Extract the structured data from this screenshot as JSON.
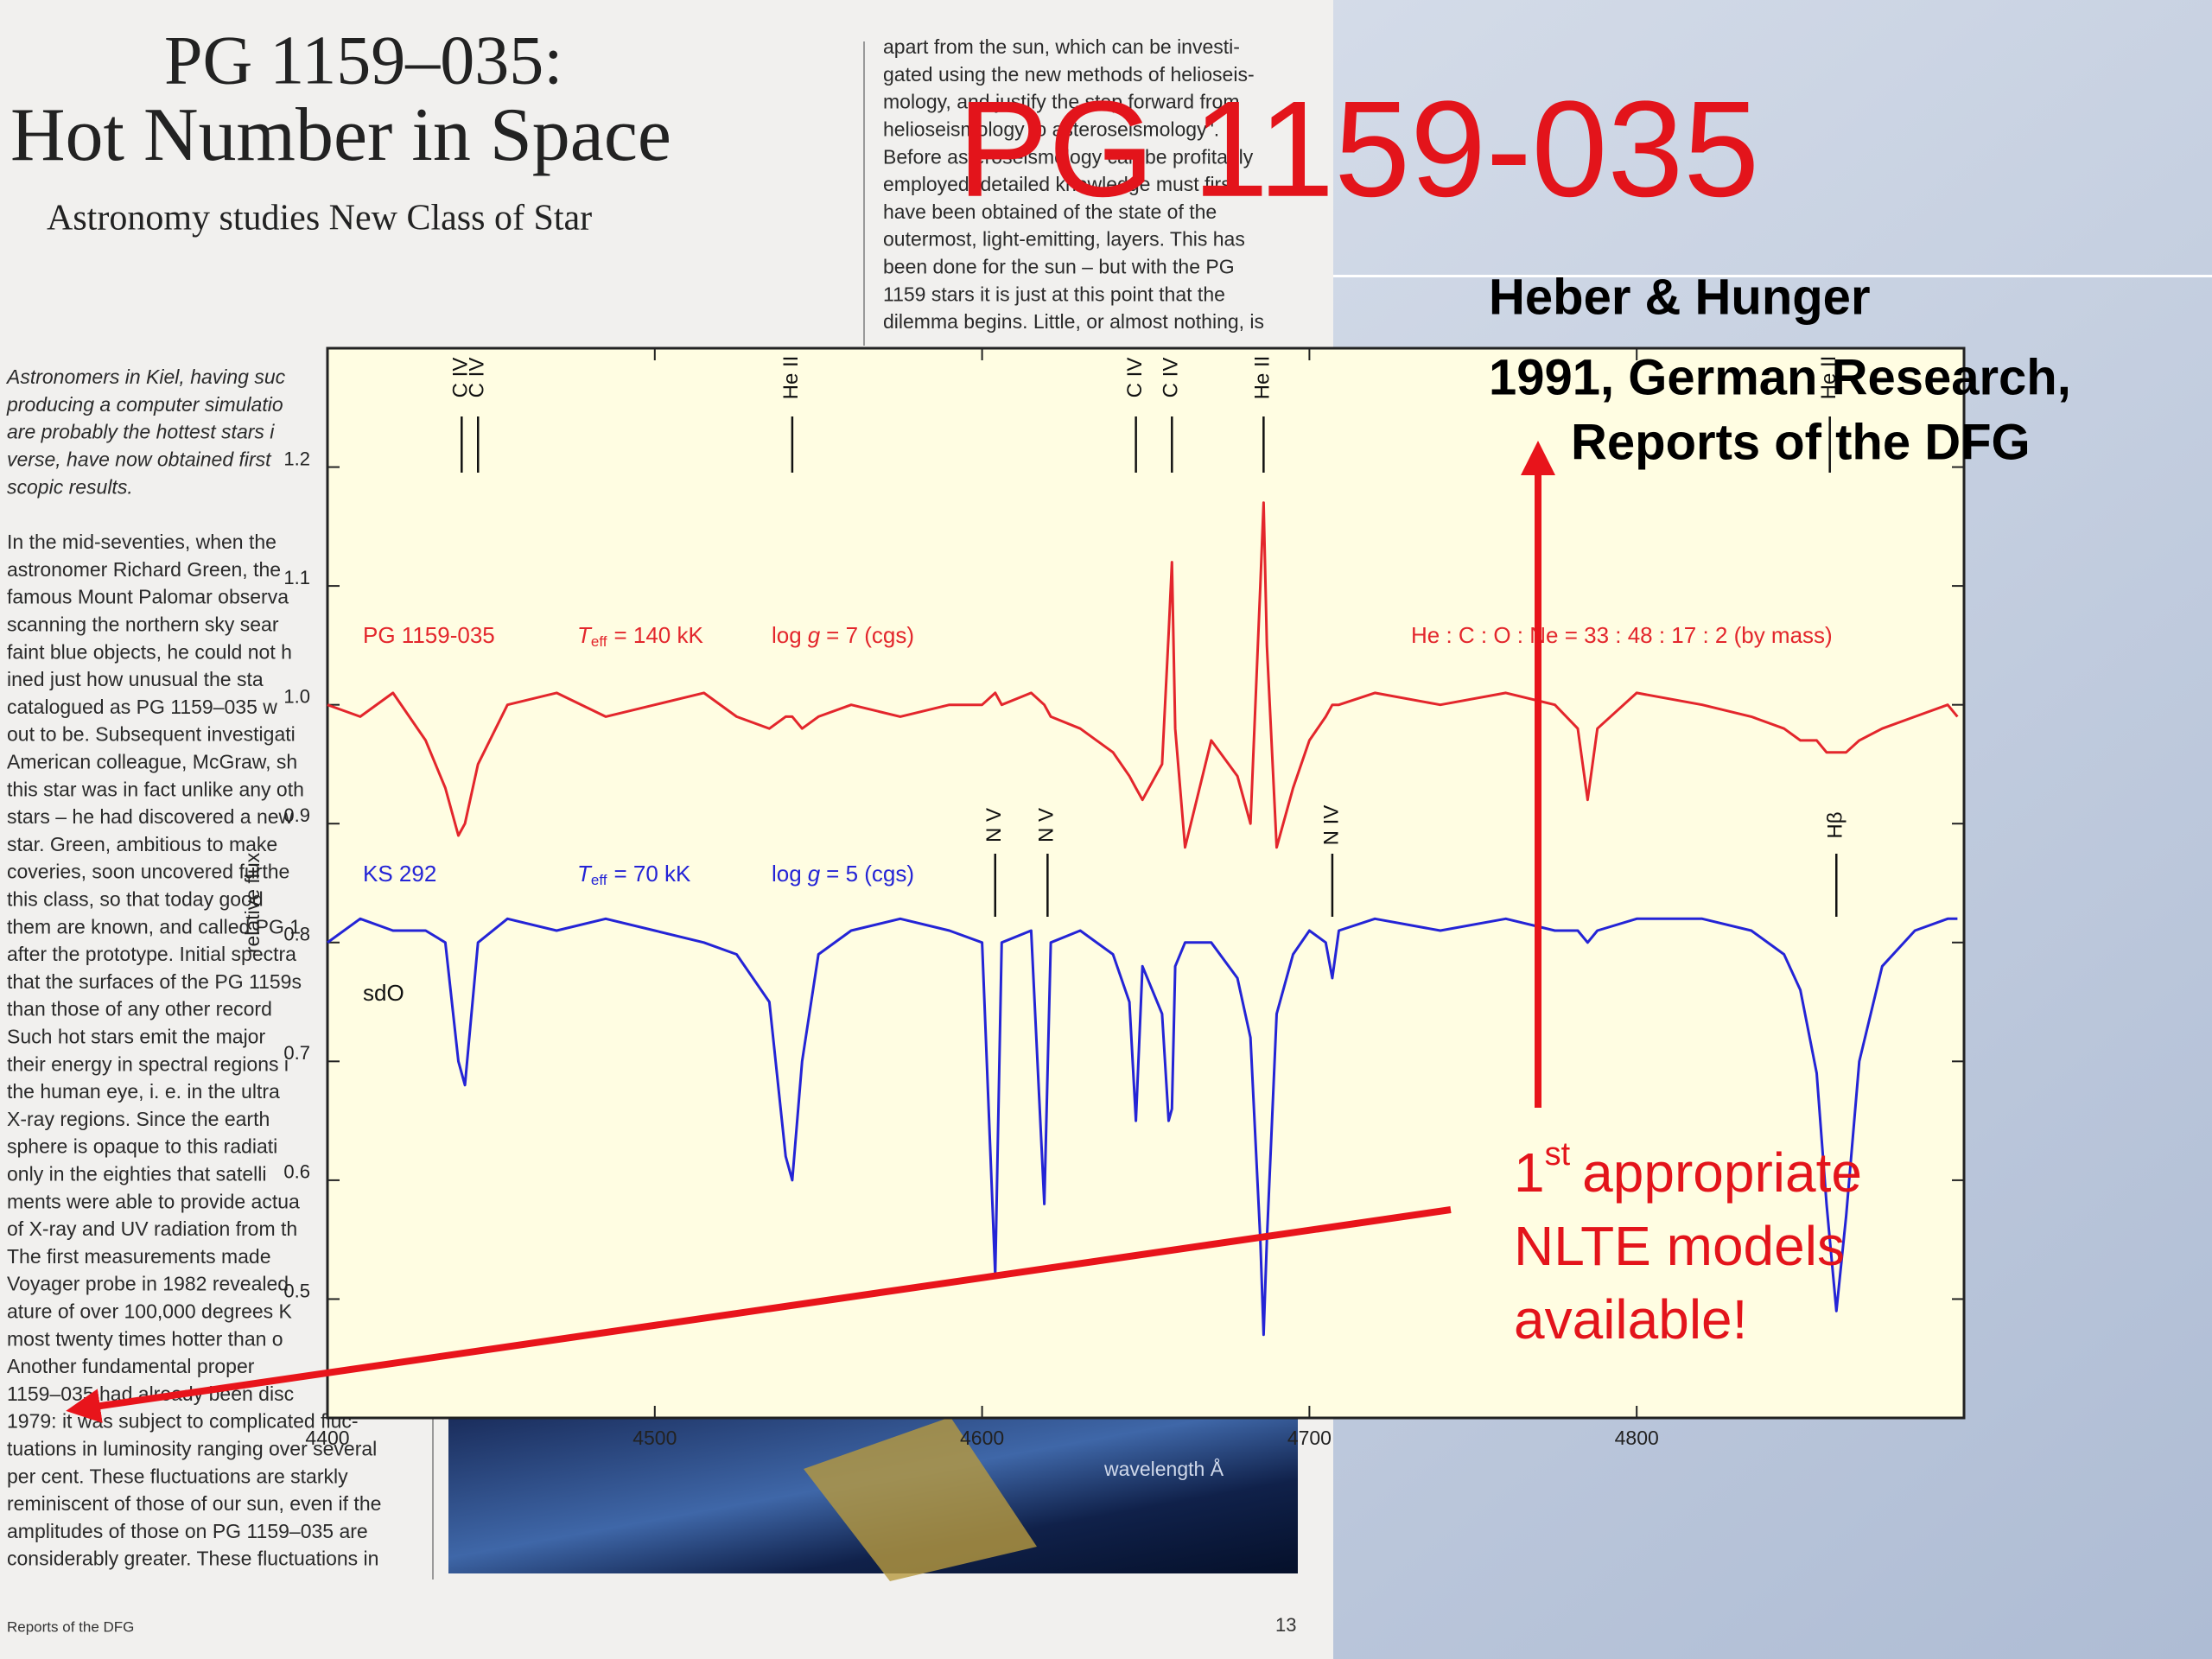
{
  "article": {
    "title_line1": "PG 1159–035:",
    "title_line2": "Hot Number in Space",
    "subtitle": "Astronomy studies New Class of Star",
    "right_column": [
      "apart from the sun, which can be investi-",
      "gated using the new methods of helioseis-",
      "mology, and justify the step forward from",
      "helioseismology to asteroseismology\".",
      "Before asteroseismology can be profitably",
      "employed, detailed knowledge must first",
      "have been obtained of the state of the",
      "outermost, light-emitting, layers. This has",
      "been done for the sun – but with the PG",
      "1159 stars it is just at this point that the",
      "dilemma begins. Little, or almost nothing, is"
    ],
    "lead": [
      "Astronomers in Kiel, having suc",
      "producing a computer simulatio",
      "are probably the hottest stars i",
      "verse, have now obtained first",
      "scopic results."
    ],
    "body": [
      "In the mid-seventies, when the",
      "astronomer Richard Green, the",
      "famous Mount Palomar observa",
      "scanning the northern sky sear",
      "faint blue objects, he could not h",
      "ined just how unusual the sta",
      "catalogued as PG 1159–035 w",
      "out to be. Subsequent investigati",
      "American colleague, McGraw, sh",
      "this star was in fact unlike any oth",
      "stars – he had discovered a new",
      "star. Green, ambitious to make",
      "coveries, soon uncovered furthe",
      "this class, so that today good",
      "them are known, and called PG 1",
      "after the prototype. Initial spectra",
      "that the surfaces of the PG 1159s",
      "than those of any other record",
      "Such hot stars emit the major",
      "their energy in spectral regions i",
      "the human eye, i. e. in the ultra",
      "X-ray regions. Since the earth",
      "sphere is opaque to this radiati",
      "only in the eighties that satelli",
      "ments were able to provide actua",
      "of X-ray and UV radiation from th",
      "The first measurements made",
      "Voyager probe in 1982 revealed",
      "ature of over 100,000 degrees K",
      "most twenty times hotter than o",
      "Another fundamental proper",
      "1159–035 had already been disc",
      "1979: it was subject to complicated fluc-",
      "tuations in luminosity ranging over several",
      "per cent. These fluctuations are starkly",
      "reminiscent of those of our sun, even if the",
      "amplitudes of those on PG 1159–035 are",
      "considerably greater. These fluctuations in"
    ],
    "footer_source": "Reports of the DFG",
    "page_number": "13"
  },
  "slide": {
    "title": "PG 1159-035",
    "reference": [
      "Heber & Hunger",
      "1991, German Research,",
      "Reports of the DFG"
    ],
    "note": {
      "number": "1",
      "superscript": "st",
      "lines": [
        "appropriate",
        "NLTE models",
        "available!"
      ]
    }
  },
  "chart_data": {
    "type": "line",
    "x_label": "wavelength Å",
    "y_label": "relative flux",
    "xlim": [
      4400,
      4900
    ],
    "ylim": [
      0.4,
      1.3
    ],
    "xticks": [
      4400,
      4500,
      4600,
      4700,
      4800
    ],
    "yticks": [
      0.5,
      0.6,
      0.7,
      0.8,
      0.9,
      {
        "value": 1,
        "label": "1.0"
      },
      1.1,
      1.2
    ],
    "x": [
      4400,
      4410,
      4420,
      4430,
      4436,
      4440,
      4442,
      4446,
      4455,
      4470,
      4485,
      4500,
      4515,
      4525,
      4535,
      4540,
      4542,
      4545,
      4550,
      4560,
      4575,
      4590,
      4600,
      4604,
      4606,
      4615,
      4619,
      4621,
      4630,
      4640,
      4645,
      4647,
      4649,
      4655,
      4657,
      4658,
      4659,
      4662,
      4670,
      4678,
      4682,
      4685,
      4686,
      4687,
      4690,
      4695,
      4700,
      4705,
      4707,
      4709,
      4720,
      4740,
      4760,
      4775,
      4782,
      4785,
      4788,
      4800,
      4820,
      4835,
      4845,
      4850,
      4855,
      4858,
      4861,
      4864,
      4868,
      4875,
      4885,
      4895,
      4898
    ],
    "series": [
      {
        "name": "PG 1159-035",
        "color": "#e3262c",
        "teff": [
          "T",
          "eff",
          "= 140 kK"
        ],
        "logg": [
          "log",
          "g",
          "= 7 (cgs)"
        ],
        "abundance": "He : C : O : Ne = 33 : 48 : 17 : 2 (by mass)",
        "values": [
          1.0,
          0.99,
          1.01,
          0.97,
          0.93,
          0.89,
          0.9,
          0.95,
          1.0,
          1.01,
          0.99,
          1.0,
          1.01,
          0.99,
          0.98,
          0.99,
          0.99,
          0.98,
          0.99,
          1.0,
          0.99,
          1.0,
          1.0,
          1.01,
          1.0,
          1.01,
          1.0,
          0.99,
          0.98,
          0.96,
          0.94,
          0.93,
          0.92,
          0.95,
          1.06,
          1.12,
          0.98,
          0.88,
          0.97,
          0.94,
          0.9,
          1.1,
          1.17,
          1.05,
          0.88,
          0.93,
          0.97,
          0.99,
          1.0,
          1.0,
          1.01,
          1.0,
          1.01,
          1.0,
          0.98,
          0.92,
          0.98,
          1.01,
          1.0,
          0.99,
          0.98,
          0.97,
          0.97,
          0.96,
          0.96,
          0.96,
          0.97,
          0.98,
          0.99,
          1.0,
          0.99
        ]
      },
      {
        "name": "KS 292",
        "color": "#2424d6",
        "teff": [
          "T",
          "eff",
          "=  70 kK"
        ],
        "logg": [
          "log",
          "g",
          "= 5 (cgs)"
        ],
        "class": "sdO",
        "values": [
          0.8,
          0.82,
          0.81,
          0.81,
          0.8,
          0.7,
          0.68,
          0.8,
          0.82,
          0.81,
          0.82,
          0.81,
          0.8,
          0.79,
          0.75,
          0.62,
          0.6,
          0.7,
          0.79,
          0.81,
          0.82,
          0.81,
          0.8,
          0.52,
          0.8,
          0.81,
          0.58,
          0.8,
          0.81,
          0.79,
          0.75,
          0.65,
          0.78,
          0.74,
          0.65,
          0.66,
          0.78,
          0.8,
          0.8,
          0.77,
          0.72,
          0.55,
          0.47,
          0.55,
          0.74,
          0.79,
          0.81,
          0.8,
          0.77,
          0.81,
          0.82,
          0.81,
          0.82,
          0.81,
          0.81,
          0.8,
          0.81,
          0.82,
          0.82,
          0.81,
          0.79,
          0.76,
          0.69,
          0.58,
          0.49,
          0.57,
          0.7,
          0.78,
          0.81,
          0.82,
          0.82
        ]
      }
    ],
    "upper_line_ids": [
      {
        "label": "C IV",
        "x": 4441
      },
      {
        "label": "C IV",
        "x": 4446
      },
      {
        "label": "He II",
        "x": 4542
      },
      {
        "label": "C IV",
        "x": 4647
      },
      {
        "label": "C IV",
        "x": 4658
      },
      {
        "label": "He II",
        "x": 4686
      },
      {
        "label": "He II",
        "x": 4859
      }
    ],
    "lower_line_ids": [
      {
        "label": "N V",
        "x": 4604
      },
      {
        "label": "N V",
        "x": 4620
      },
      {
        "label": "N IV",
        "x": 4707
      },
      {
        "label": "Hβ",
        "x": 4861
      }
    ]
  }
}
